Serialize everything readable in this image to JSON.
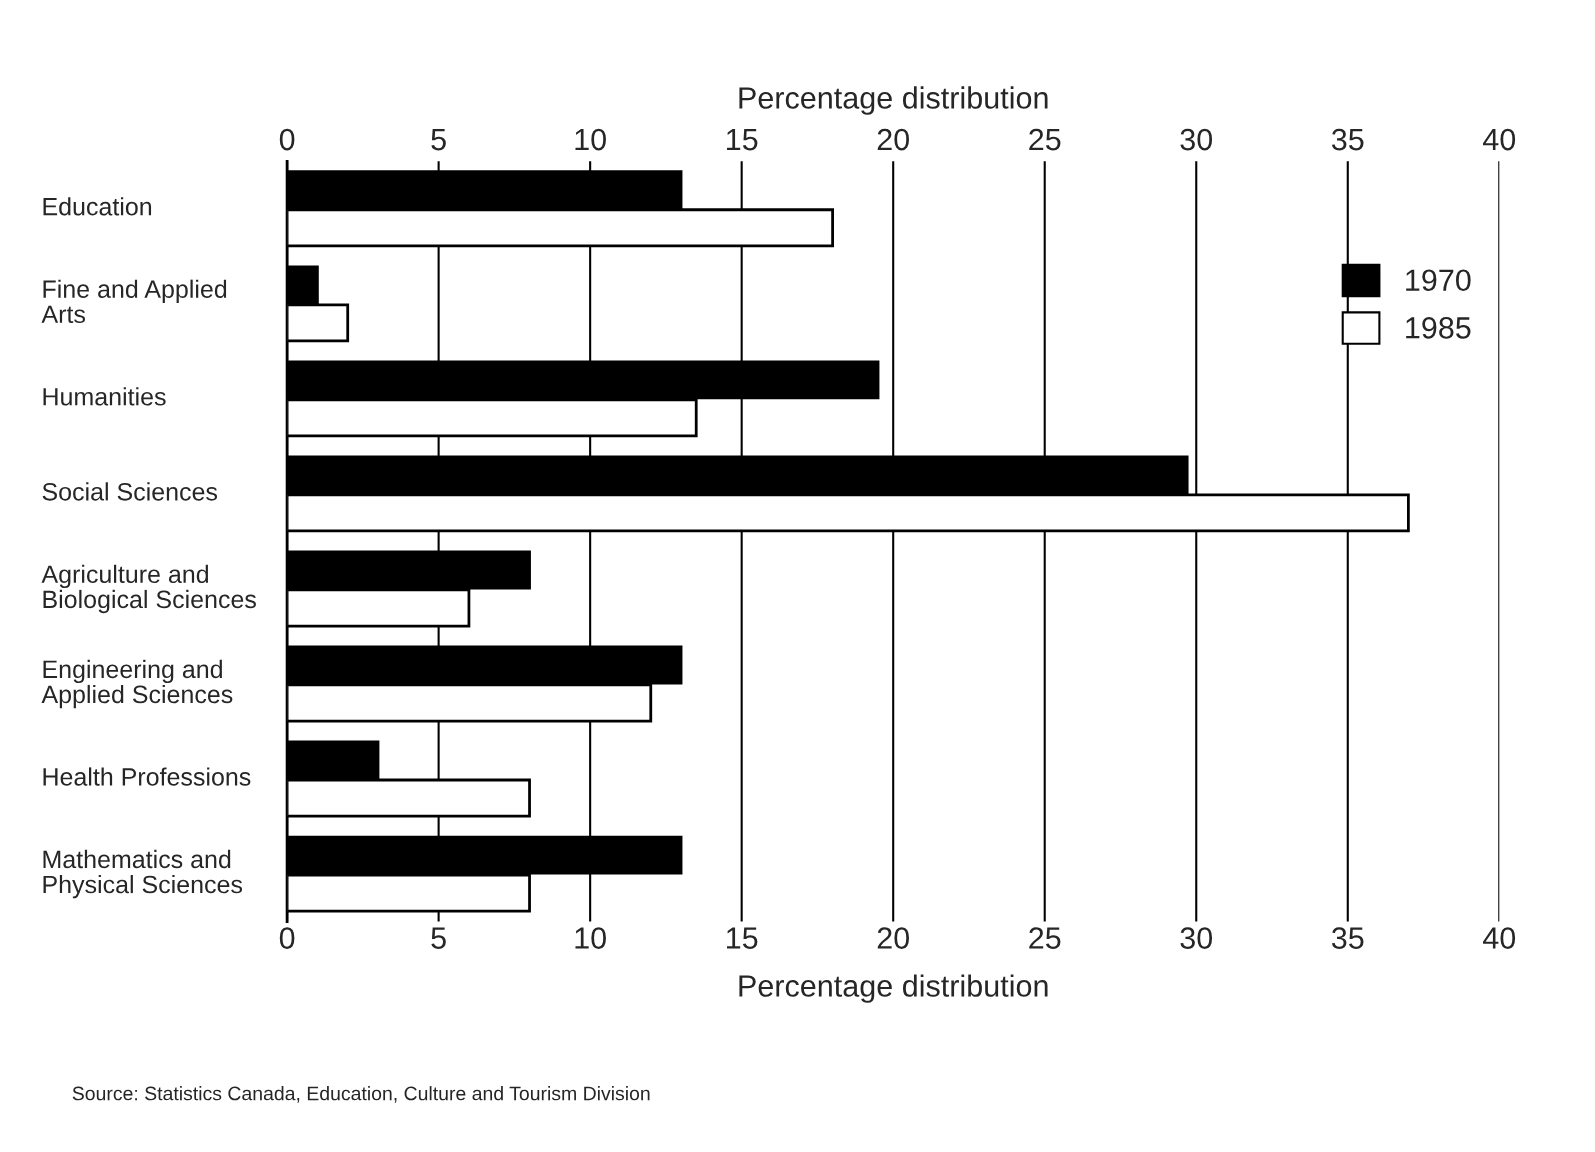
{
  "chart_data": {
    "type": "bar",
    "orientation": "horizontal",
    "categories": [
      "Education",
      "Fine and Applied\nArts",
      "Humanities",
      "Social Sciences",
      "Agriculture and\nBiological Sciences",
      "Engineering and\nApplied Sciences",
      "Health Professions",
      "Mathematics and\nPhysical Sciences"
    ],
    "series": [
      {
        "name": "1970",
        "color": "#000000",
        "values": [
          13,
          1,
          19.5,
          29.7,
          8,
          13,
          3,
          13
        ]
      },
      {
        "name": "1985",
        "color": "#ffffff",
        "values": [
          18,
          2,
          13.5,
          37,
          6,
          12,
          8,
          8
        ]
      }
    ],
    "xlabel": "Percentage distribution",
    "x2label": "Percentage distribution",
    "xlim": [
      0,
      40
    ],
    "xticks": [
      0,
      5,
      10,
      15,
      20,
      25,
      30,
      35,
      40
    ],
    "x2lim": [
      0,
      40
    ],
    "x2ticks": [
      0,
      5,
      10,
      15,
      20,
      25,
      30,
      35,
      40
    ],
    "grid": "x",
    "legend": "top right",
    "annotations": [
      "Source: Statistics Canada, Education, Culture and Tourism Division"
    ]
  }
}
